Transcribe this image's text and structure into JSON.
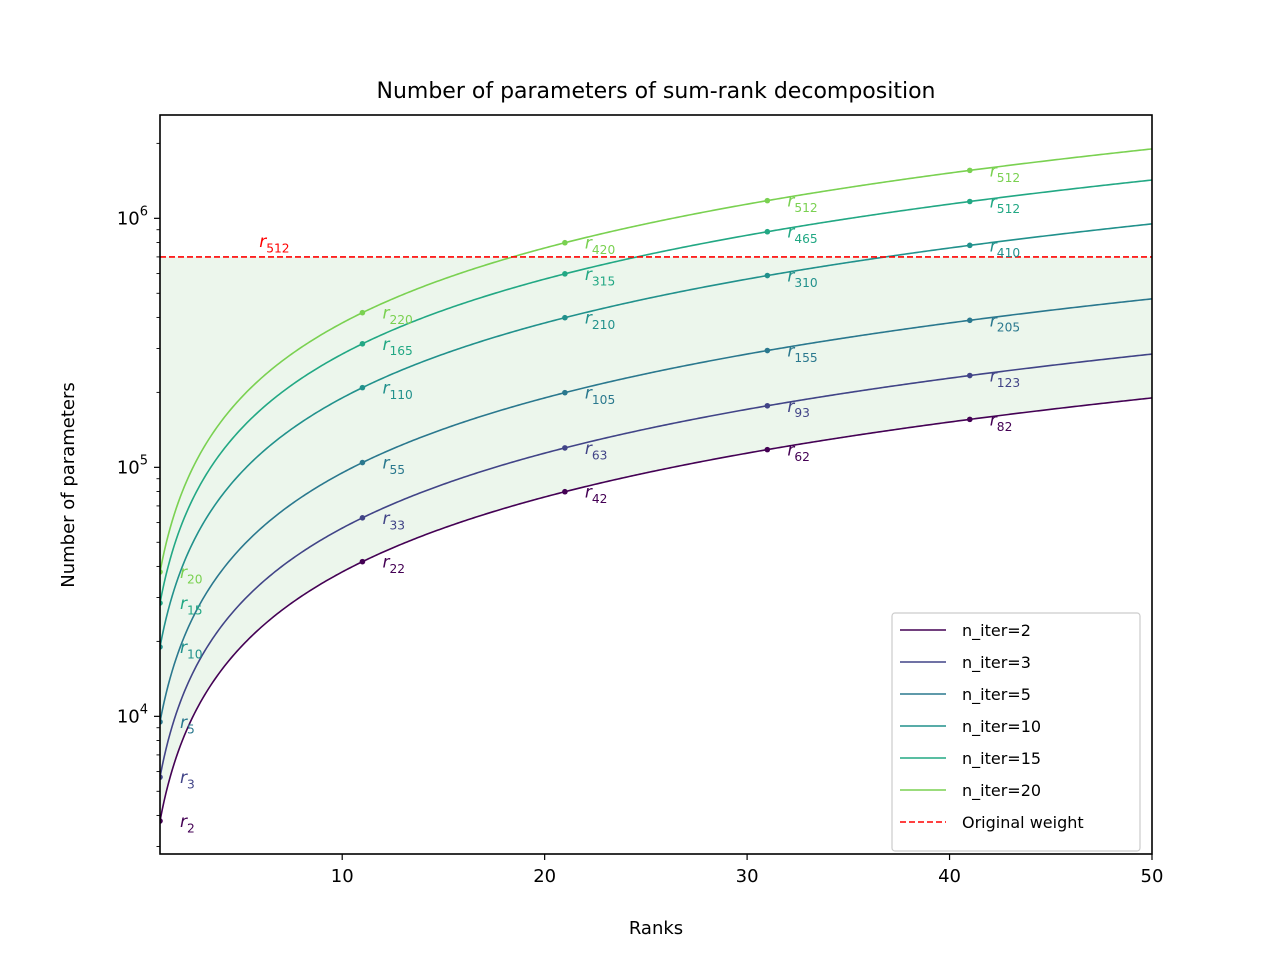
{
  "chart_data": {
    "type": "line",
    "title": "Number of parameters of sum-rank decomposition",
    "xlabel": "Ranks",
    "ylabel": "Number of parameters",
    "xlim": [
      1,
      50
    ],
    "ylim": [
      2800,
      2600000
    ],
    "yscale": "log",
    "x_ticks": [
      10,
      20,
      30,
      40,
      50
    ],
    "y_ticks": [
      {
        "value": 10000,
        "base": "10",
        "exp": "4"
      },
      {
        "value": 100000,
        "base": "10",
        "exp": "5"
      },
      {
        "value": 1000000,
        "base": "10",
        "exp": "6"
      }
    ],
    "grid": false,
    "legend_position": "lower right",
    "shaded_region": {
      "color": "#2ca02c",
      "from_series": "n_iter=2",
      "to_value": 700000
    },
    "reference_line": {
      "name": "Original weight",
      "value": 700000,
      "color": "#ff0000",
      "label_base": "r",
      "label_sub": "512",
      "label_x": 6
    },
    "series": [
      {
        "name": "n_iter=2",
        "color": "#440154",
        "coefficient": 3800,
        "markers": [
          {
            "x": 1,
            "label_base": "r",
            "label_sub": "2"
          },
          {
            "x": 11,
            "label_base": "r",
            "label_sub": "22"
          },
          {
            "x": 21,
            "label_base": "r",
            "label_sub": "42"
          },
          {
            "x": 31,
            "label_base": "r",
            "label_sub": "62"
          },
          {
            "x": 41,
            "label_base": "r",
            "label_sub": "82"
          }
        ]
      },
      {
        "name": "n_iter=3",
        "color": "#414487",
        "coefficient": 5700,
        "markers": [
          {
            "x": 1,
            "label_base": "r",
            "label_sub": "3"
          },
          {
            "x": 11,
            "label_base": "r",
            "label_sub": "33"
          },
          {
            "x": 21,
            "label_base": "r",
            "label_sub": "63"
          },
          {
            "x": 31,
            "label_base": "r",
            "label_sub": "93"
          },
          {
            "x": 41,
            "label_base": "r",
            "label_sub": "123"
          }
        ]
      },
      {
        "name": "n_iter=5",
        "color": "#2a788e",
        "coefficient": 9500,
        "markers": [
          {
            "x": 1,
            "label_base": "r",
            "label_sub": "5"
          },
          {
            "x": 11,
            "label_base": "r",
            "label_sub": "55"
          },
          {
            "x": 21,
            "label_base": "r",
            "label_sub": "105"
          },
          {
            "x": 31,
            "label_base": "r",
            "label_sub": "155"
          },
          {
            "x": 41,
            "label_base": "r",
            "label_sub": "205"
          }
        ]
      },
      {
        "name": "n_iter=10",
        "color": "#21918c",
        "coefficient": 19000,
        "markers": [
          {
            "x": 1,
            "label_base": "r",
            "label_sub": "10"
          },
          {
            "x": 11,
            "label_base": "r",
            "label_sub": "110"
          },
          {
            "x": 21,
            "label_base": "r",
            "label_sub": "210"
          },
          {
            "x": 31,
            "label_base": "r",
            "label_sub": "310"
          },
          {
            "x": 41,
            "label_base": "r",
            "label_sub": "410"
          }
        ]
      },
      {
        "name": "n_iter=15",
        "color": "#22a884",
        "coefficient": 28500,
        "markers": [
          {
            "x": 1,
            "label_base": "r",
            "label_sub": "15"
          },
          {
            "x": 11,
            "label_base": "r",
            "label_sub": "165"
          },
          {
            "x": 21,
            "label_base": "r",
            "label_sub": "315"
          },
          {
            "x": 31,
            "label_base": "r",
            "label_sub": "465"
          },
          {
            "x": 41,
            "label_base": "r",
            "label_sub": "512"
          }
        ]
      },
      {
        "name": "n_iter=20",
        "color": "#7ad151",
        "coefficient": 38000,
        "markers": [
          {
            "x": 1,
            "label_base": "r",
            "label_sub": "20"
          },
          {
            "x": 11,
            "label_base": "r",
            "label_sub": "220"
          },
          {
            "x": 21,
            "label_base": "r",
            "label_sub": "420"
          },
          {
            "x": 31,
            "label_base": "r",
            "label_sub": "512"
          },
          {
            "x": 41,
            "label_base": "r",
            "label_sub": "512"
          }
        ]
      }
    ]
  }
}
